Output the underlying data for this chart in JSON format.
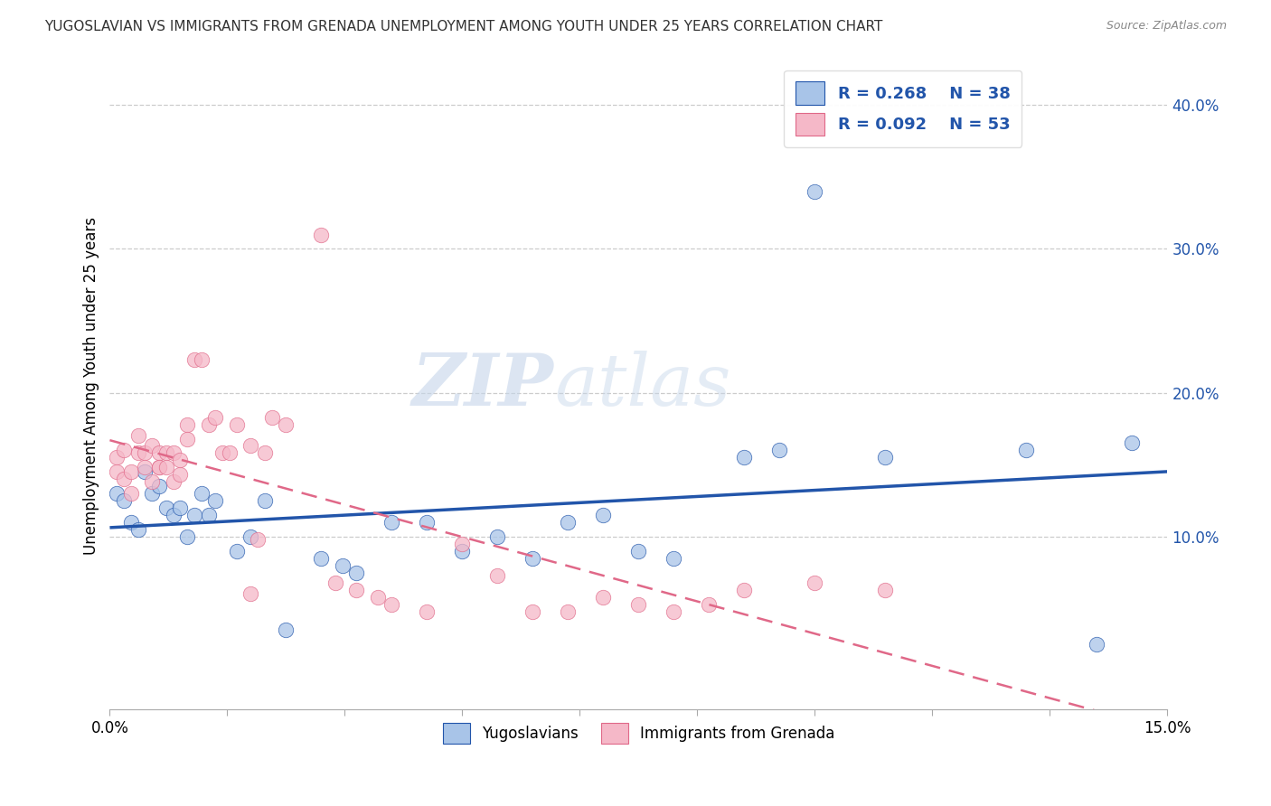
{
  "title": "YUGOSLAVIAN VS IMMIGRANTS FROM GRENADA UNEMPLOYMENT AMONG YOUTH UNDER 25 YEARS CORRELATION CHART",
  "source": "Source: ZipAtlas.com",
  "ylabel": "Unemployment Among Youth under 25 years",
  "ylabel_right_ticks": [
    "10.0%",
    "20.0%",
    "30.0%",
    "40.0%"
  ],
  "ylabel_right_vals": [
    0.1,
    0.2,
    0.3,
    0.4
  ],
  "xlim": [
    0.0,
    0.15
  ],
  "ylim": [
    -0.02,
    0.43
  ],
  "r_yug": 0.268,
  "n_yug": 38,
  "r_gren": 0.092,
  "n_gren": 53,
  "color_yug": "#a8c4e8",
  "color_gren": "#f5b8c8",
  "trendline_yug_color": "#2255aa",
  "trendline_gren_color": "#e06888",
  "watermark_zip": "ZIP",
  "watermark_atlas": "atlas",
  "yug_x": [
    0.001,
    0.002,
    0.003,
    0.004,
    0.005,
    0.006,
    0.007,
    0.008,
    0.009,
    0.01,
    0.011,
    0.012,
    0.013,
    0.014,
    0.015,
    0.018,
    0.02,
    0.022,
    0.025,
    0.03,
    0.033,
    0.035,
    0.04,
    0.045,
    0.05,
    0.055,
    0.06,
    0.065,
    0.07,
    0.075,
    0.08,
    0.09,
    0.095,
    0.1,
    0.11,
    0.13,
    0.14,
    0.145
  ],
  "yug_y": [
    0.13,
    0.125,
    0.11,
    0.105,
    0.145,
    0.13,
    0.135,
    0.12,
    0.115,
    0.12,
    0.1,
    0.115,
    0.13,
    0.115,
    0.125,
    0.09,
    0.1,
    0.125,
    0.035,
    0.085,
    0.08,
    0.075,
    0.11,
    0.11,
    0.09,
    0.1,
    0.085,
    0.11,
    0.115,
    0.09,
    0.085,
    0.155,
    0.16,
    0.34,
    0.155,
    0.16,
    0.025,
    0.165
  ],
  "gren_x": [
    0.001,
    0.001,
    0.002,
    0.002,
    0.003,
    0.003,
    0.004,
    0.004,
    0.005,
    0.005,
    0.006,
    0.006,
    0.007,
    0.007,
    0.007,
    0.008,
    0.008,
    0.009,
    0.009,
    0.01,
    0.01,
    0.011,
    0.011,
    0.012,
    0.013,
    0.014,
    0.015,
    0.016,
    0.017,
    0.018,
    0.02,
    0.021,
    0.022,
    0.023,
    0.025,
    0.03,
    0.032,
    0.035,
    0.038,
    0.04,
    0.045,
    0.05,
    0.055,
    0.06,
    0.065,
    0.07,
    0.075,
    0.08,
    0.085,
    0.09,
    0.1,
    0.11,
    0.02
  ],
  "gren_y": [
    0.155,
    0.145,
    0.16,
    0.14,
    0.145,
    0.13,
    0.17,
    0.158,
    0.158,
    0.148,
    0.138,
    0.163,
    0.148,
    0.158,
    0.148,
    0.158,
    0.148,
    0.158,
    0.138,
    0.143,
    0.153,
    0.178,
    0.168,
    0.223,
    0.223,
    0.178,
    0.183,
    0.158,
    0.158,
    0.178,
    0.163,
    0.098,
    0.158,
    0.183,
    0.178,
    0.31,
    0.068,
    0.063,
    0.058,
    0.053,
    0.048,
    0.095,
    0.073,
    0.048,
    0.048,
    0.058,
    0.053,
    0.048,
    0.053,
    0.063,
    0.068,
    0.063,
    0.06
  ]
}
